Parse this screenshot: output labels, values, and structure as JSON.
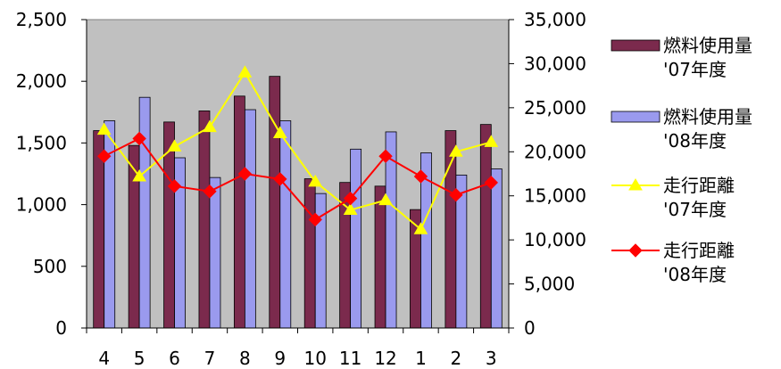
{
  "chart_data": {
    "type": "bar",
    "categories": [
      "4",
      "5",
      "6",
      "7",
      "8",
      "9",
      "10",
      "11",
      "12",
      "1",
      "2",
      "3"
    ],
    "ylim_left": [
      0,
      2500
    ],
    "yticks_left": [
      "0",
      "500",
      "1,000",
      "1,500",
      "2,000",
      "2,500"
    ],
    "ylim_right": [
      0,
      35000
    ],
    "yticks_right": [
      "0",
      "5,000",
      "10,000",
      "15,000",
      "20,000",
      "25,000",
      "30,000",
      "35,000"
    ],
    "grid": false,
    "legend_position": "right",
    "series": [
      {
        "name_line1": "燃料使用量",
        "name_line2": "'07年度",
        "type": "bar",
        "axis": "left",
        "color": "#7b2a4d",
        "values": [
          1600,
          1480,
          1670,
          1760,
          1880,
          2040,
          1210,
          1180,
          1150,
          960,
          1600,
          1650
        ]
      },
      {
        "name_line1": "燃料使用量",
        "name_line2": "'08年度",
        "type": "bar",
        "axis": "left",
        "color": "#9a9aee",
        "values": [
          1680,
          1870,
          1380,
          1220,
          1770,
          1680,
          1090,
          1450,
          1590,
          1420,
          1240,
          1290
        ]
      },
      {
        "name_line1": "走行距離",
        "name_line2": "'07年度",
        "type": "line",
        "axis": "right",
        "color": "#ffff00",
        "marker": "triangle",
        "values": [
          22500,
          17200,
          20600,
          22800,
          29000,
          22100,
          16600,
          13400,
          14500,
          11200,
          20000,
          21100
        ]
      },
      {
        "name_line1": "走行距離",
        "name_line2": "'08年度",
        "type": "line",
        "axis": "right",
        "color": "#ff0000",
        "marker": "diamond",
        "values": [
          19500,
          21500,
          16100,
          15500,
          17500,
          16900,
          12300,
          14700,
          19500,
          17200,
          15100,
          16500
        ]
      }
    ]
  }
}
